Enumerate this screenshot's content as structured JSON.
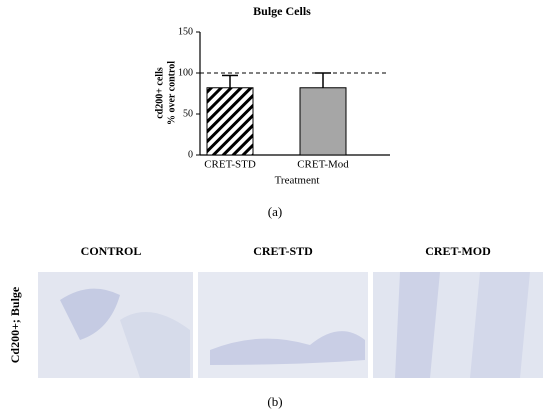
{
  "chart_data": {
    "type": "bar",
    "title": "Bulge Cells",
    "y_label": [
      "cd200+ cells",
      "% over control"
    ],
    "x_label": "Treatment",
    "categories": [
      "CRET-STD",
      "CRET-Mod"
    ],
    "values": [
      82,
      82
    ],
    "errors": [
      15,
      18
    ],
    "colors": [
      "#ffffff",
      "#a6a6a6"
    ],
    "hatch": [
      true,
      false
    ],
    "ylim": [
      0,
      150
    ],
    "yticks": [
      0,
      50,
      100,
      150
    ],
    "ref_line": 100
  },
  "panel_a_label": "(a)",
  "panel_b": {
    "column_headers": [
      "CONTROL",
      "CRET-STD",
      "CRET-MOD"
    ],
    "row_label": "Cd200+; Bulge",
    "label": "(b)"
  }
}
